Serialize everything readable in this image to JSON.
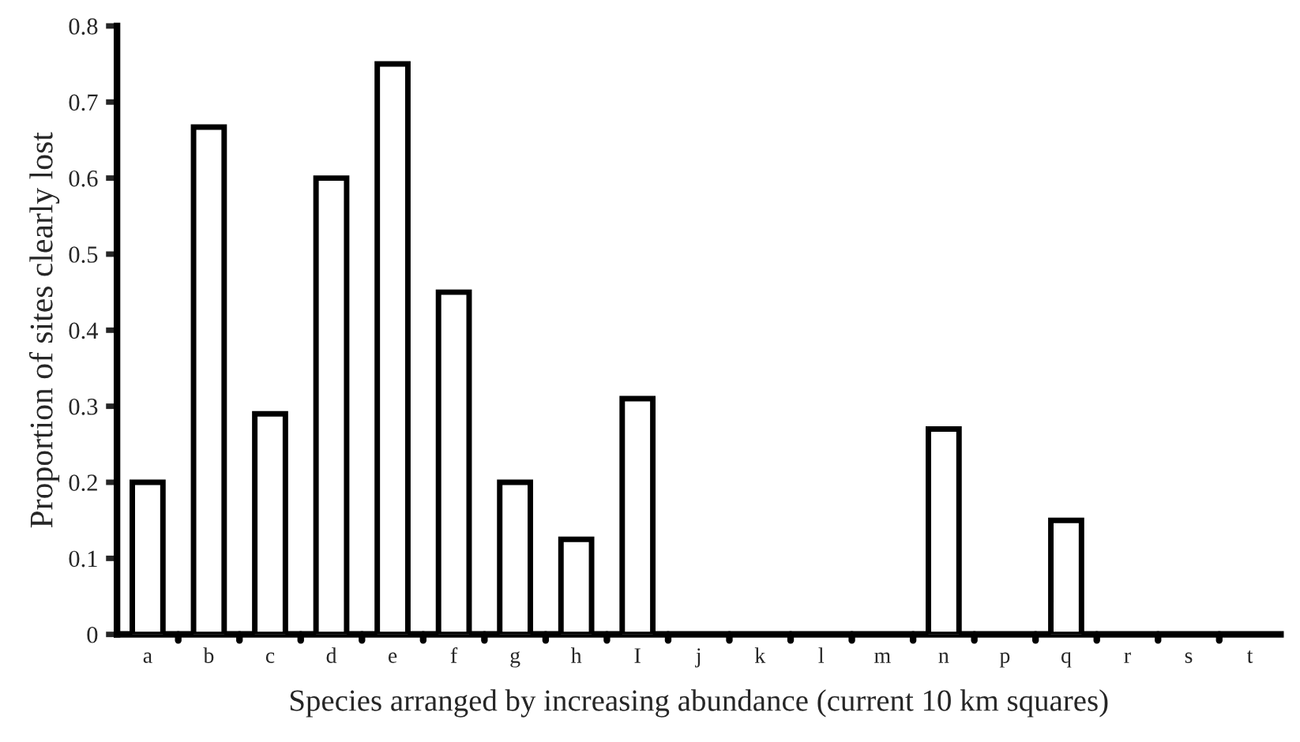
{
  "chart_data": {
    "type": "bar",
    "xlabel": "Species arranged by increasing abundance (current 10 km squares)",
    "ylabel": "Proportion of sites clearly lost",
    "categories": [
      "a",
      "b",
      "c",
      "d",
      "e",
      "f",
      "g",
      "h",
      "I",
      "j",
      "k",
      "l",
      "m",
      "n",
      "p",
      "q",
      "r",
      "s",
      "t"
    ],
    "values": [
      0.2,
      0.667,
      0.29,
      0.6,
      0.75,
      0.45,
      0.2,
      0.125,
      0.31,
      0,
      0,
      0,
      0,
      0.27,
      0,
      0.15,
      0,
      0,
      0
    ],
    "color": "#ffffff",
    "ylim": [
      0,
      0.8
    ],
    "yticks": [
      0,
      0.1,
      0.2,
      0.3,
      0.4,
      0.5,
      0.6,
      0.7,
      0.8
    ],
    "grid": false
  }
}
